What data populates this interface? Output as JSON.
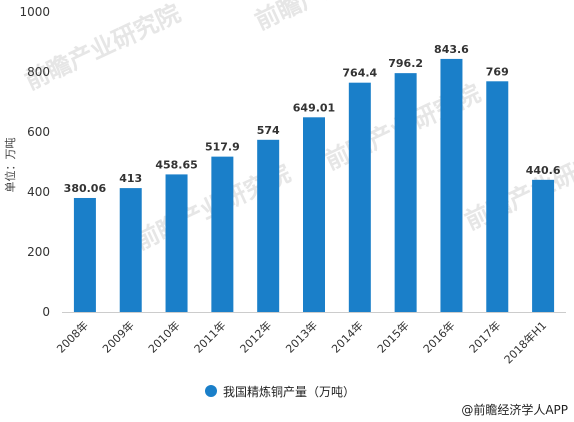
{
  "chart_data": {
    "type": "bar",
    "categories": [
      "2008年",
      "2009年",
      "2010年",
      "2011年",
      "2012年",
      "2013年",
      "2014年",
      "2015年",
      "2016年",
      "2017年",
      "2018年H1"
    ],
    "series": [
      {
        "name": "我国精炼铜产量（万吨）",
        "values": [
          380.06,
          413,
          458.65,
          517.9,
          574,
          649.01,
          764.4,
          796.2,
          843.6,
          769,
          440.6
        ],
        "labels": [
          "380.06",
          "413",
          "458.65",
          "517.9",
          "574",
          "649.01",
          "764.4",
          "796.2",
          "843.6",
          "769",
          "440.6"
        ],
        "color": "#1a7fc9"
      }
    ],
    "ylabel": "单位：万吨",
    "ylim": [
      0,
      1000
    ],
    "yticks": [
      0,
      200,
      400,
      600,
      800,
      1000
    ],
    "grid": false,
    "legend_position": "bottom"
  },
  "source": "@前瞻经济学人APP",
  "watermark": "前瞻产业研究院"
}
